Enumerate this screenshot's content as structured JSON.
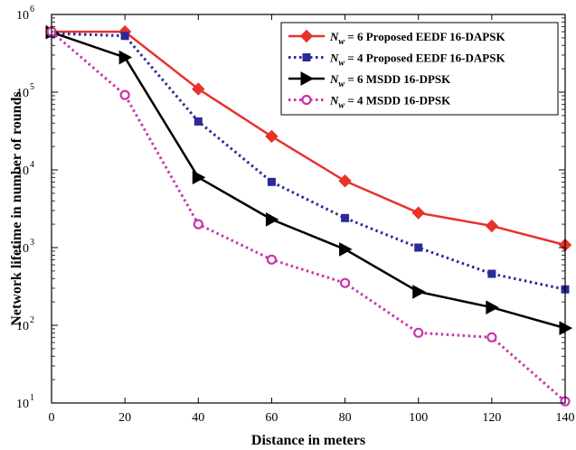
{
  "chart_data": {
    "type": "line",
    "title": "",
    "xlabel": "Distance in meters",
    "ylabel": "Network lifetime in number of rounds",
    "x": [
      0,
      20,
      40,
      60,
      80,
      100,
      120,
      140
    ],
    "xticks": [
      "0",
      "20",
      "40",
      "60",
      "80",
      "100",
      "120",
      "140"
    ],
    "xlim": [
      0,
      140
    ],
    "ylim": [
      10,
      1000000
    ],
    "yscale": "log",
    "ytick_exponents": [
      "1",
      "2",
      "3",
      "4",
      "5",
      "6"
    ],
    "grid": false,
    "legend_position": "top-right",
    "series": [
      {
        "name_prefix": "N",
        "name_subscript": "w",
        "name_suffix": " = 6 Proposed EEDF 16-DAPSK",
        "color": "#e8322c",
        "line": "solid",
        "marker": "diamond",
        "values": [
          600000,
          600000,
          110000,
          27000,
          7200,
          2800,
          1900,
          1080
        ]
      },
      {
        "name_prefix": "N",
        "name_subscript": "w",
        "name_suffix": " = 4 Proposed EEDF 16-DAPSK",
        "color": "#2b2a9b",
        "line": "dotted",
        "marker": "square",
        "values": [
          570000,
          530000,
          42000,
          7000,
          2400,
          1000,
          460,
          290
        ]
      },
      {
        "name_prefix": "N",
        "name_subscript": "w",
        "name_suffix": " = 6 MSDD 16-DPSK",
        "color": "#000000",
        "line": "solid",
        "marker": "triangle-right",
        "values": [
          590000,
          280000,
          8000,
          2300,
          950,
          270,
          170,
          92
        ]
      },
      {
        "name_prefix": "N",
        "name_subscript": "w",
        "name_suffix": " = 4 MSDD 16-DPSK",
        "color": "#cc33aa",
        "line": "dotted",
        "marker": "circle",
        "values": [
          600000,
          92000,
          2000,
          700,
          350,
          80,
          70,
          10.5
        ]
      }
    ]
  }
}
